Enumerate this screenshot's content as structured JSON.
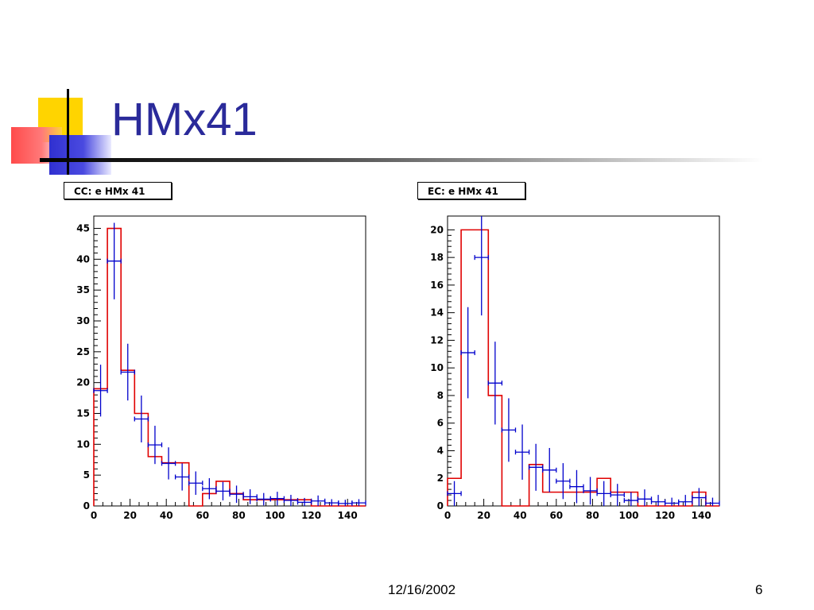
{
  "slide": {
    "title": "HMx41",
    "footer_date": "12/16/2002",
    "page_number": "6"
  },
  "colors": {
    "title": "#2a2a9a",
    "mc_histogram": "#e00000",
    "data_points": "#0000cc"
  },
  "chart_data": [
    {
      "type": "histogram",
      "title": "CC: e HMx 41",
      "xlim": [
        0,
        150
      ],
      "ylim": [
        0,
        47
      ],
      "xticks": [
        0,
        20,
        40,
        60,
        80,
        100,
        120,
        140
      ],
      "yticks": [
        0,
        5,
        10,
        15,
        20,
        25,
        30,
        35,
        40,
        45
      ],
      "bin_edges": [
        0,
        7.5,
        15,
        22.5,
        30,
        37.5,
        45,
        52.5,
        60,
        67.5,
        75,
        82.5,
        90,
        97.5,
        105,
        112.5,
        120,
        127.5,
        135,
        142.5,
        150
      ],
      "series": [
        {
          "kind": "step",
          "color": "#e00000",
          "values": [
            19,
            45,
            22,
            15,
            8,
            7,
            7,
            0,
            2,
            4,
            2,
            1,
            1,
            1,
            1,
            1,
            0,
            0,
            0,
            0
          ]
        },
        {
          "kind": "errorbar",
          "color": "#0000cc",
          "x": [
            3.75,
            11.25,
            18.75,
            26.25,
            33.75,
            41.25,
            48.75,
            56.25,
            63.75,
            71.25,
            78.75,
            86.25,
            93.75,
            101.25,
            108.75,
            116.25,
            123.75,
            131.25,
            138.75,
            146.25
          ],
          "y": [
            18.7,
            39.7,
            21.7,
            14.1,
            9.9,
            6.9,
            4.7,
            3.7,
            2.8,
            2.4,
            1.9,
            1.5,
            1.1,
            1.2,
            0.9,
            0.6,
            0.8,
            0.5,
            0.4,
            0.5
          ],
          "err": [
            4.2,
            6.2,
            4.6,
            3.8,
            3.1,
            2.6,
            2.2,
            1.9,
            1.7,
            1.5,
            1.4,
            1.2,
            1.0,
            1.1,
            0.9,
            0.7,
            0.9,
            0.6,
            0.6,
            0.6
          ]
        }
      ]
    },
    {
      "type": "histogram",
      "title": "EC: e HMx 41",
      "xlim": [
        0,
        150
      ],
      "ylim": [
        0,
        21
      ],
      "xticks": [
        0,
        20,
        40,
        60,
        80,
        100,
        120,
        140
      ],
      "yticks": [
        0,
        2,
        4,
        6,
        8,
        10,
        12,
        14,
        16,
        18,
        20
      ],
      "bin_edges": [
        0,
        7.5,
        15,
        22.5,
        30,
        37.5,
        45,
        52.5,
        60,
        67.5,
        75,
        82.5,
        90,
        97.5,
        105,
        112.5,
        120,
        127.5,
        135,
        142.5,
        150
      ],
      "series": [
        {
          "kind": "step",
          "color": "#e00000",
          "values": [
            2,
            20,
            20,
            8,
            0,
            0,
            3,
            1,
            1,
            1,
            1,
            2,
            1,
            1,
            0,
            0,
            0,
            0,
            1,
            0
          ]
        },
        {
          "kind": "errorbar",
          "color": "#0000cc",
          "x": [
            3.75,
            11.25,
            18.75,
            26.25,
            33.75,
            41.25,
            48.75,
            56.25,
            63.75,
            71.25,
            78.75,
            86.25,
            93.75,
            101.25,
            108.75,
            116.25,
            123.75,
            131.25,
            138.75,
            146.25
          ],
          "y": [
            0.9,
            11.1,
            18.0,
            8.9,
            5.5,
            3.9,
            2.8,
            2.6,
            1.8,
            1.4,
            1.1,
            0.9,
            0.8,
            0.4,
            0.5,
            0.3,
            0.2,
            0.3,
            0.6,
            0.2
          ],
          "err": [
            0.9,
            3.3,
            4.2,
            3.0,
            2.3,
            2.0,
            1.7,
            1.6,
            1.3,
            1.2,
            1.0,
            0.9,
            0.8,
            0.6,
            0.7,
            0.5,
            0.4,
            0.5,
            0.7,
            0.4
          ]
        }
      ]
    }
  ]
}
